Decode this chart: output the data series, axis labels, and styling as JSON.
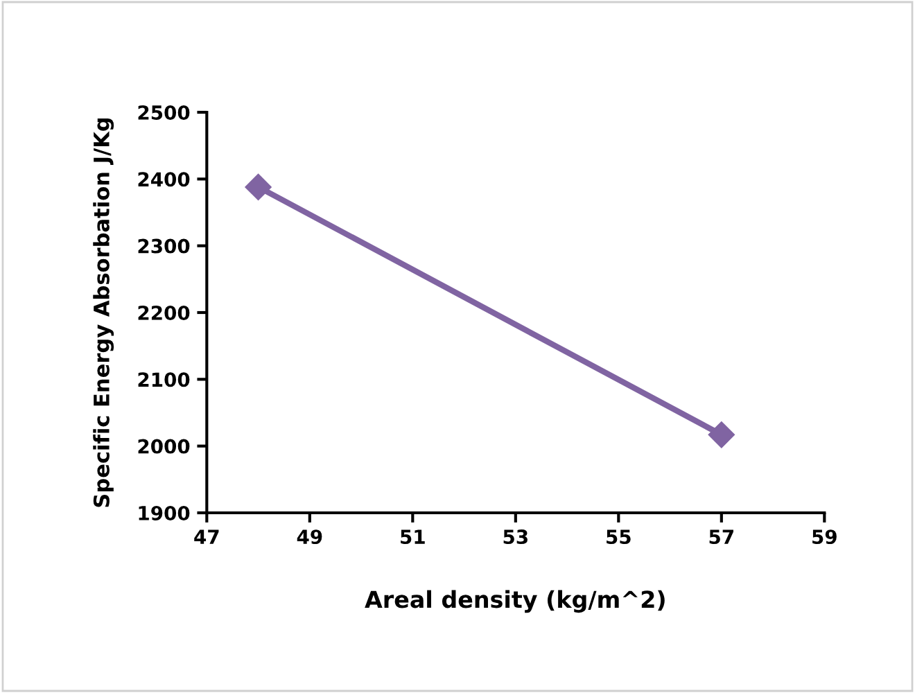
{
  "chart_data": {
    "type": "line",
    "xlabel": "Areal density (kg/m^2)",
    "ylabel": "Specific Energy Absorbation J/Kg",
    "x": [
      48,
      57
    ],
    "series": [
      {
        "color": "#8064a2",
        "values": [
          2388,
          2017
        ]
      }
    ],
    "xlim": [
      47,
      59
    ],
    "xticks": [
      47,
      49,
      51,
      53,
      55,
      57,
      59
    ],
    "ylim": [
      1900,
      2500
    ],
    "yticks": [
      1900,
      2000,
      2100,
      2200,
      2300,
      2400,
      2500
    ],
    "grid": false,
    "marker": "diamond",
    "line_style": "solid"
  }
}
